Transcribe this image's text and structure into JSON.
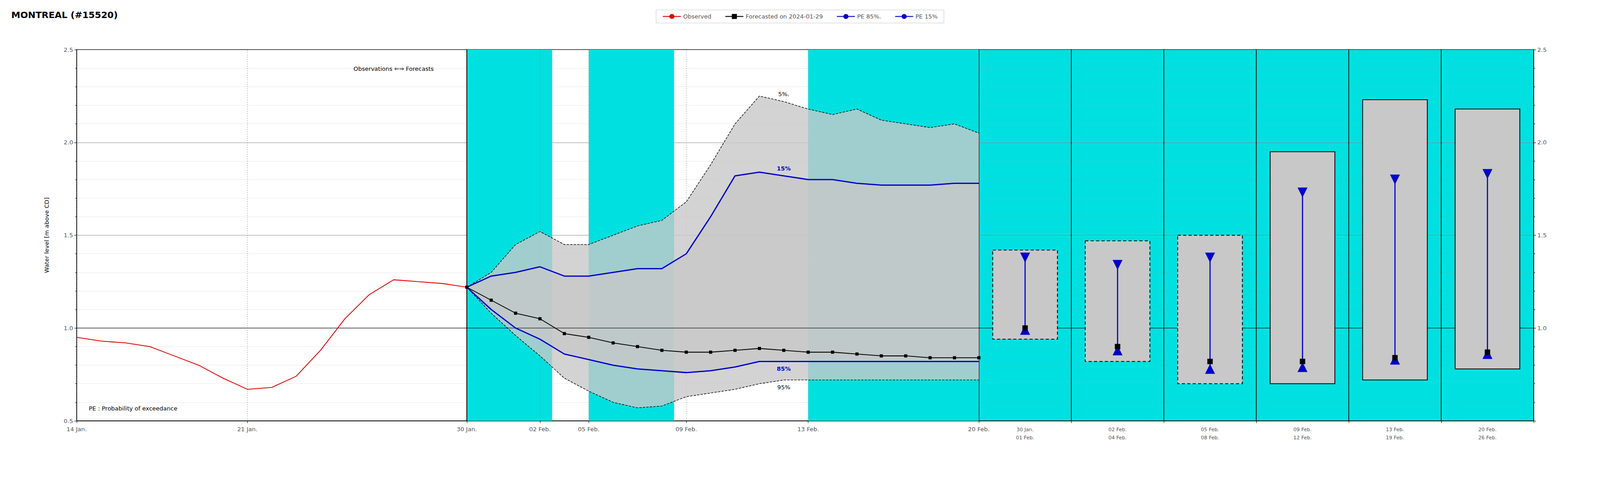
{
  "chart_data": [
    {
      "type": "line",
      "title": "MONTREAL (#15520)",
      "ylabel": "Water level [m above CD]",
      "xlim": [
        0,
        37
      ],
      "xticks": [
        {
          "value": 0,
          "label": "14 Jan."
        },
        {
          "value": 7,
          "label": "21 Jan."
        },
        {
          "value": 16,
          "label": "30 Jan."
        },
        {
          "value": 19,
          "label": "02 Feb."
        },
        {
          "value": 21,
          "label": "05 Feb."
        },
        {
          "value": 25,
          "label": "09 Feb."
        },
        {
          "value": 30,
          "label": "13 Feb."
        },
        {
          "value": 37,
          "label": "20 Feb."
        }
      ],
      "ylim": [
        0.5,
        2.5
      ],
      "yticks": [
        0.5,
        {
          "value": 1.0,
          "label": "1.0"
        },
        1.5,
        {
          "value": 2.0,
          "label": "2.0"
        },
        2.5
      ],
      "grid": true,
      "legend": "top",
      "series": [
        {
          "name": "Observed",
          "color": "#dd0000",
          "x": [
            0,
            1,
            2,
            3,
            4,
            5,
            6,
            7,
            8,
            9,
            10,
            11,
            12,
            13,
            14,
            15,
            16
          ],
          "values": [
            0.95,
            0.93,
            0.92,
            0.9,
            0.85,
            0.8,
            0.73,
            0.67,
            0.68,
            0.74,
            0.88,
            1.05,
            1.18,
            1.26,
            1.25,
            1.24,
            1.22
          ]
        },
        {
          "name": "Forecasted on 2024-01-29",
          "color": "#000000",
          "marker": "square",
          "x": [
            16,
            17,
            18,
            19,
            20,
            21,
            22,
            23,
            24,
            25,
            26,
            27,
            28,
            29,
            30,
            31,
            32,
            33,
            34,
            35,
            36,
            37
          ],
          "values": [
            1.22,
            1.15,
            1.08,
            1.05,
            0.97,
            0.95,
            0.92,
            0.9,
            0.88,
            0.87,
            0.87,
            0.88,
            0.89,
            0.88,
            0.87,
            0.87,
            0.86,
            0.85,
            0.85,
            0.84,
            0.84,
            0.84
          ]
        },
        {
          "name": "PE 85%.",
          "color": "#0000cc",
          "label": "85%",
          "x": [
            16,
            17,
            18,
            19,
            20,
            21,
            22,
            23,
            24,
            25,
            26,
            27,
            28,
            29,
            30,
            31,
            32,
            33,
            34,
            35,
            36,
            37
          ],
          "values": [
            1.22,
            1.1,
            1.0,
            0.94,
            0.86,
            0.83,
            0.8,
            0.78,
            0.77,
            0.76,
            0.77,
            0.79,
            0.82,
            0.82,
            0.82,
            0.82,
            0.82,
            0.82,
            0.82,
            0.82,
            0.82,
            0.82
          ]
        },
        {
          "name": "PE 15%",
          "color": "#0000cc",
          "label": "15%",
          "x": [
            16,
            17,
            18,
            19,
            20,
            21,
            22,
            23,
            24,
            25,
            26,
            27,
            28,
            29,
            30,
            31,
            32,
            33,
            34,
            35,
            36,
            37
          ],
          "values": [
            1.22,
            1.28,
            1.3,
            1.33,
            1.28,
            1.28,
            1.3,
            1.32,
            1.32,
            1.4,
            1.6,
            1.82,
            1.84,
            1.82,
            1.8,
            1.8,
            1.78,
            1.77,
            1.77,
            1.77,
            1.78,
            1.78
          ]
        },
        {
          "label": "5%.",
          "color": "#000000",
          "line_style": "dashed",
          "x": [
            16,
            17,
            18,
            19,
            20,
            21,
            22,
            23,
            24,
            25,
            26,
            27,
            28,
            29,
            30,
            31,
            32,
            33,
            34,
            35,
            36,
            37
          ],
          "values": [
            1.22,
            1.3,
            1.45,
            1.52,
            1.45,
            1.45,
            1.5,
            1.55,
            1.58,
            1.68,
            1.88,
            2.1,
            2.25,
            2.22,
            2.18,
            2.15,
            2.18,
            2.12,
            2.1,
            2.08,
            2.1,
            2.05
          ]
        },
        {
          "label": "95%",
          "color": "#000000",
          "line_style": "dashed",
          "x": [
            16,
            17,
            18,
            19,
            20,
            21,
            22,
            23,
            24,
            25,
            26,
            27,
            28,
            29,
            30,
            31,
            32,
            33,
            34,
            35,
            36,
            37
          ],
          "values": [
            1.22,
            1.08,
            0.96,
            0.85,
            0.73,
            0.66,
            0.6,
            0.57,
            0.58,
            0.63,
            0.65,
            0.67,
            0.7,
            0.72,
            0.72,
            0.72,
            0.72,
            0.72,
            0.72,
            0.72,
            0.72,
            0.72
          ]
        }
      ],
      "bands": [
        {
          "upper": "5%.",
          "lower": "95%",
          "color": "#c8c8c8"
        },
        {
          "upper": "15%",
          "lower": "85%",
          "color": "#c8c8c8"
        }
      ],
      "shaded": {
        "ranges": [
          [
            16,
            19.5
          ],
          [
            21.0,
            24.5
          ],
          [
            30.0,
            37.0
          ]
        ],
        "color": "#00e0e0"
      },
      "vlines": [
        16
      ],
      "hlines": [
        1.0
      ],
      "annotations": [
        {
          "text": "Observations ⇐⇒ Forecasts",
          "x": 13,
          "y": 2.38
        },
        {
          "text": "PE : Probability of exceedance",
          "x": 0.5,
          "y": 0.55
        }
      ]
    },
    {
      "type": "range",
      "categories": [
        "30 Jan.",
        "02 Feb.",
        "05 Feb.",
        "09 Feb.",
        "13 Feb.",
        "20 Feb."
      ],
      "sub_labels": [
        "01 Feb.",
        "04 Feb.",
        "08 Feb.",
        "12 Feb.",
        "19 Feb.",
        "26 Feb."
      ],
      "ylim": [
        0.5,
        2.5
      ],
      "yticks": [
        {
          "value": 1.0,
          "label": "1.0"
        },
        1.5,
        {
          "value": 2.0,
          "label": "2.0"
        },
        2.5
      ],
      "grid": true,
      "hlines": [
        1.0
      ],
      "background": {
        "color": "#00e0e0"
      },
      "box": {
        "bottom": [
          0.94,
          0.82,
          0.7,
          0.7,
          0.72,
          0.78
        ],
        "top": [
          1.42,
          1.47,
          1.5,
          1.95,
          2.23,
          2.18
        ],
        "dashed": [
          true,
          true,
          true,
          false,
          false,
          false
        ],
        "color": "#c8c8c8"
      },
      "series": [
        {
          "name": "PE 85%.",
          "color": "#0000cc",
          "marker": "triangle-up",
          "values": [
            0.99,
            0.88,
            0.78,
            0.79,
            0.83,
            0.86
          ]
        },
        {
          "name": "PE 15%",
          "color": "#0000cc",
          "marker": "triangle-down",
          "values": [
            1.38,
            1.34,
            1.38,
            1.73,
            1.8,
            1.83
          ]
        },
        {
          "name": "Forecasted on 2024-01-29",
          "color": "#000000",
          "marker": "square",
          "values": [
            1.0,
            0.9,
            0.82,
            0.82,
            0.84,
            0.87
          ]
        }
      ]
    }
  ]
}
